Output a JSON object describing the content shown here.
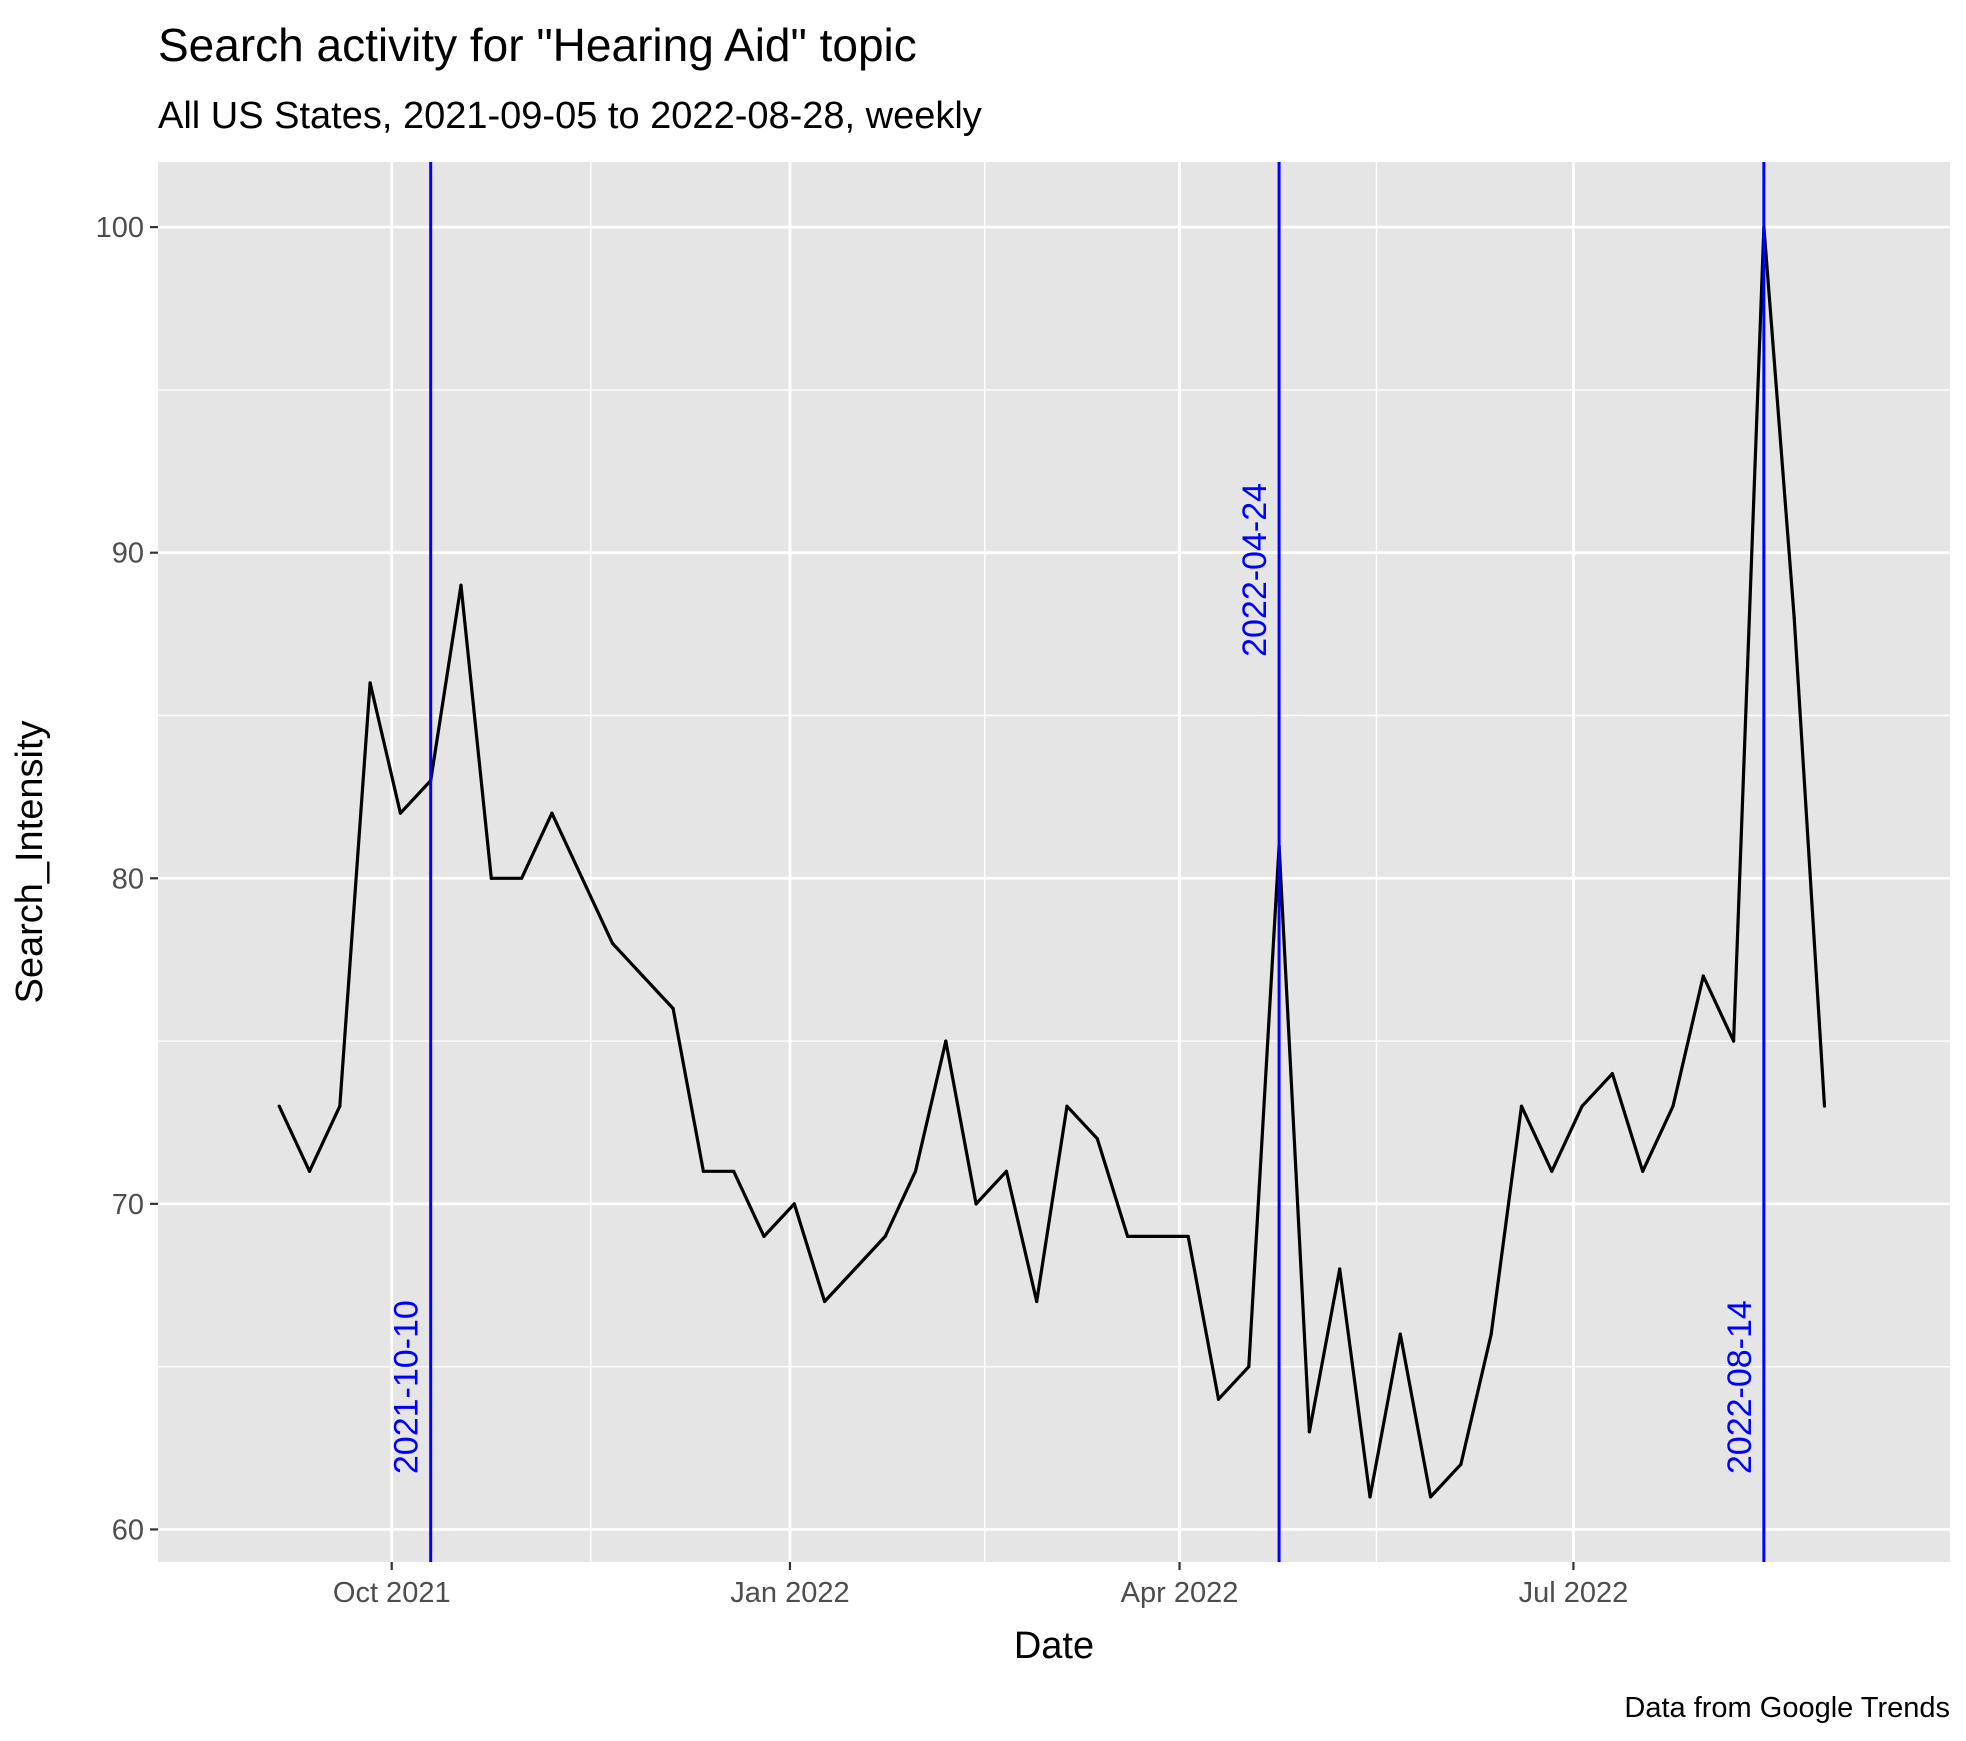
{
  "chart_data": {
    "type": "line",
    "title": "Search activity for \"Hearing Aid\" topic",
    "subtitle": "All US States, 2021-09-05 to 2022-08-28, weekly",
    "xlabel": "Date",
    "ylabel": "Search_Intensity",
    "caption": "Data from Google Trends",
    "x_axis_type": "date",
    "xlim": [
      "2021-08-08",
      "2022-09-26"
    ],
    "ylim": [
      59,
      102
    ],
    "x_ticks": [
      {
        "date": "2021-10-01",
        "label": "Oct 2021"
      },
      {
        "date": "2022-01-01",
        "label": "Jan 2022"
      },
      {
        "date": "2022-04-01",
        "label": "Apr 2022"
      },
      {
        "date": "2022-07-01",
        "label": "Jul 2022"
      }
    ],
    "y_ticks": [
      60,
      70,
      80,
      90,
      100
    ],
    "grid": true,
    "line_color": "#000000",
    "panel_background": "#e5e5e5",
    "grid_color": "#ffffff",
    "series": [
      {
        "x": [
          "2021-09-05",
          "2021-09-12",
          "2021-09-19",
          "2021-09-26",
          "2021-10-03",
          "2021-10-10",
          "2021-10-17",
          "2021-10-24",
          "2021-10-31",
          "2021-11-07",
          "2021-11-14",
          "2021-11-21",
          "2021-11-28",
          "2021-12-05",
          "2021-12-12",
          "2021-12-19",
          "2021-12-26",
          "2022-01-02",
          "2022-01-09",
          "2022-01-16",
          "2022-01-23",
          "2022-01-30",
          "2022-02-06",
          "2022-02-13",
          "2022-02-20",
          "2022-02-27",
          "2022-03-06",
          "2022-03-13",
          "2022-03-20",
          "2022-03-27",
          "2022-04-03",
          "2022-04-10",
          "2022-04-17",
          "2022-04-24",
          "2022-05-01",
          "2022-05-08",
          "2022-05-15",
          "2022-05-22",
          "2022-05-29",
          "2022-06-05",
          "2022-06-12",
          "2022-06-19",
          "2022-06-26",
          "2022-07-03",
          "2022-07-10",
          "2022-07-17",
          "2022-07-24",
          "2022-07-31",
          "2022-08-07",
          "2022-08-14",
          "2022-08-21",
          "2022-08-28"
        ],
        "y": [
          73,
          71,
          73,
          86,
          82,
          83,
          89,
          80,
          80,
          82,
          80,
          78,
          77,
          76,
          71,
          71,
          69,
          70,
          67,
          68,
          69,
          71,
          75,
          70,
          71,
          67,
          73,
          72,
          69,
          69,
          69,
          64,
          65,
          81,
          63,
          68,
          61,
          66,
          61,
          62,
          66,
          73,
          71,
          73,
          74,
          71,
          73,
          77,
          75,
          100,
          88,
          73
        ]
      }
    ],
    "vlines": {
      "color": "#0000ff",
      "items": [
        {
          "date": "2021-10-10",
          "label": "2021-10-10",
          "label_anchor": "bottom"
        },
        {
          "date": "2022-04-24",
          "label": "2022-04-24",
          "label_anchor": "top"
        },
        {
          "date": "2022-08-14",
          "label": "2022-08-14",
          "label_anchor": "bottom"
        }
      ]
    }
  }
}
